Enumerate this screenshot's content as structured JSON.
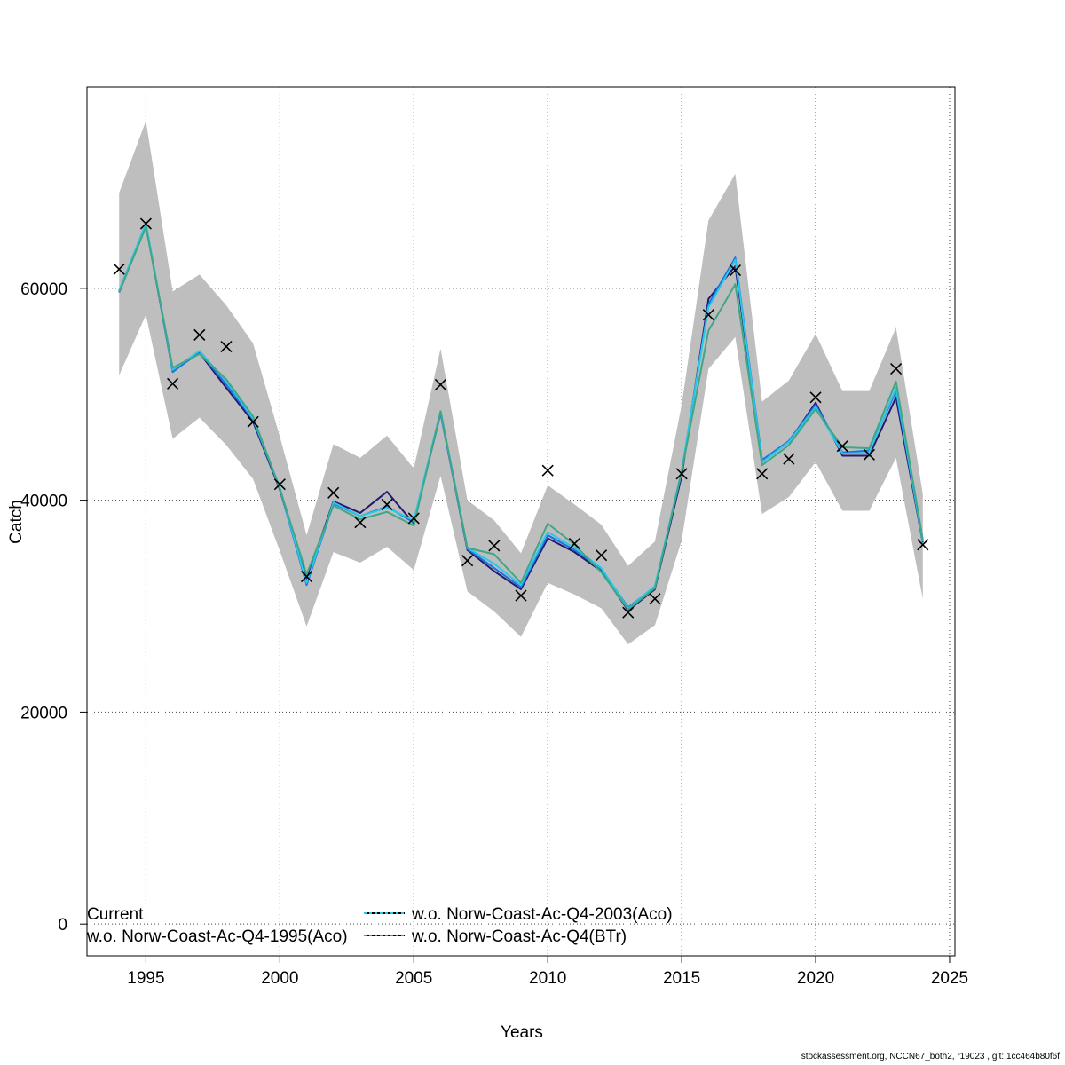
{
  "chart_data": {
    "type": "line",
    "xlabel": "Years",
    "ylabel": "Catch",
    "xlim": [
      1992.8,
      2025.2
    ],
    "ylim": [
      -3000,
      79000
    ],
    "xticks": [
      1995,
      2000,
      2005,
      2010,
      2015,
      2020,
      2025
    ],
    "yticks": [
      0,
      20000,
      40000,
      60000
    ],
    "grid": true,
    "x": [
      1994,
      1995,
      1996,
      1997,
      1998,
      1999,
      2000,
      2001,
      2002,
      2003,
      2004,
      2005,
      2006,
      2007,
      2008,
      2009,
      2010,
      2011,
      2012,
      2013,
      2014,
      2015,
      2016,
      2017,
      2018,
      2019,
      2020,
      2021,
      2022,
      2023,
      2024
    ],
    "observed": [
      61800,
      66100,
      51000,
      55600,
      54500,
      47400,
      41500,
      32800,
      40700,
      37900,
      39600,
      38300,
      50900,
      34300,
      35700,
      31000,
      42800,
      35900,
      34800,
      29400,
      30700,
      42500,
      57500,
      61700,
      42500,
      43900,
      49700,
      45100,
      44300,
      52400,
      35800
    ],
    "band": {
      "color": "#bebebe",
      "upper": [
        69000,
        75800,
        59700,
        61300,
        58400,
        54800,
        46000,
        36700,
        45300,
        44000,
        46100,
        43000,
        54300,
        40000,
        38100,
        35000,
        41400,
        39600,
        37700,
        33800,
        36100,
        49000,
        66400,
        70800,
        49300,
        51300,
        55700,
        50300,
        50300,
        56300,
        40600
      ],
      "lower": [
        51800,
        57500,
        45800,
        47800,
        45200,
        42000,
        35200,
        28100,
        35100,
        34100,
        35600,
        33400,
        42300,
        31400,
        29500,
        27100,
        32200,
        31100,
        29800,
        26400,
        28200,
        36200,
        52400,
        55400,
        38700,
        40300,
        43600,
        39000,
        39000,
        44000,
        30700
      ]
    },
    "series": [
      {
        "name": "Current",
        "color": "#221a73",
        "values": [
          59600,
          66000,
          52200,
          53900,
          50600,
          47400,
          41000,
          32500,
          39900,
          38800,
          40800,
          37800,
          48300,
          35300,
          33300,
          31600,
          36400,
          35100,
          33300,
          29600,
          31600,
          42300,
          59000,
          62100,
          43700,
          45500,
          49200,
          44200,
          44200,
          49700,
          36000
        ]
      },
      {
        "name": "w.o. Norw-Coast-Ac-Q4-1995(Aco)",
        "color": "#1e6fe0",
        "values": [
          59700,
          66100,
          52100,
          54000,
          50900,
          47600,
          41100,
          32000,
          39700,
          38500,
          39400,
          37900,
          48200,
          35400,
          33600,
          31800,
          36700,
          35300,
          33500,
          29900,
          31800,
          42600,
          58500,
          62900,
          43800,
          45600,
          49000,
          44500,
          44700,
          50300,
          36100
        ]
      },
      {
        "name": "w.o. Norw-Coast-Ac-Q4-2003(Aco)",
        "color": "#29c8e8",
        "values": [
          59800,
          66100,
          52300,
          54100,
          51200,
          47700,
          41200,
          32200,
          39800,
          38500,
          39300,
          38100,
          48400,
          35500,
          34000,
          32000,
          37000,
          35500,
          33600,
          29800,
          31900,
          42800,
          58200,
          62700,
          43600,
          45500,
          48800,
          44400,
          44500,
          50600,
          36100
        ]
      },
      {
        "name": "w.o. Norw-Coast-Ac-Q4(BTr)",
        "color": "#41a685",
        "values": [
          59600,
          65800,
          52500,
          53800,
          51400,
          47900,
          41100,
          33000,
          39500,
          38200,
          38900,
          37600,
          48400,
          35500,
          34900,
          32200,
          37800,
          35800,
          33200,
          29700,
          31700,
          42700,
          56000,
          60400,
          43300,
          45200,
          48600,
          45000,
          44900,
          51200,
          36300
        ]
      }
    ],
    "legend": {
      "placement": "bottom-left"
    }
  },
  "legend_labels": {
    "l1": "Current",
    "l2": "w.o. Norw-Coast-Ac-Q4-1995(Aco)",
    "l3": "w.o. Norw-Coast-Ac-Q4-2003(Aco)",
    "l4": "w.o. Norw-Coast-Ac-Q4(BTr)"
  },
  "footer_text": "stockassessment.org, NCCN67_both2, r19023 , git: 1cc464b80f6f"
}
